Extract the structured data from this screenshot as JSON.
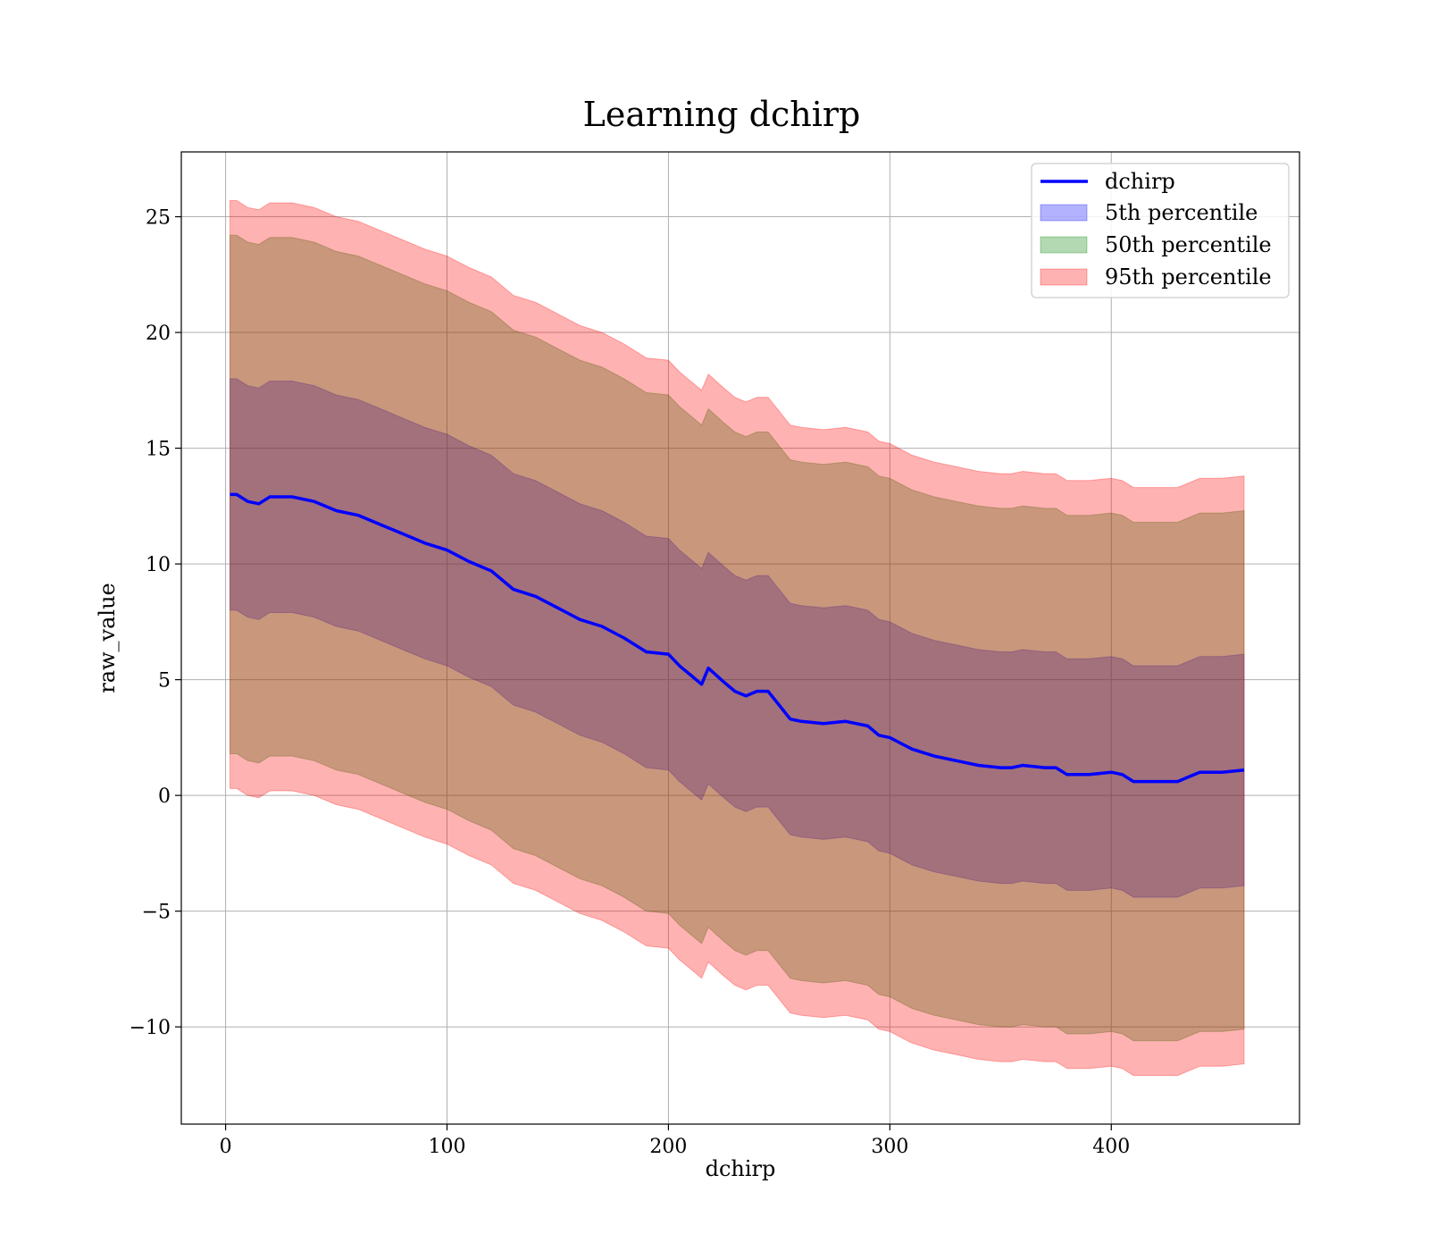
{
  "chart_data": {
    "type": "area",
    "title": "Learning dchirp",
    "xlabel": "dchirp",
    "ylabel": "raw_value",
    "xlim": [
      -20,
      485
    ],
    "ylim": [
      -14.2,
      27.8
    ],
    "xticks": [
      0,
      100,
      200,
      300,
      400
    ],
    "yticks": [
      -10,
      -5,
      0,
      5,
      10,
      15,
      20,
      25
    ],
    "ytick_labels": [
      "−10",
      "−5",
      "0",
      "5",
      "10",
      "15",
      "20",
      "25"
    ],
    "grid": true,
    "legend_position": "top-right",
    "x": [
      2,
      5,
      10,
      15,
      20,
      30,
      40,
      50,
      60,
      70,
      80,
      90,
      100,
      110,
      120,
      130,
      140,
      150,
      160,
      170,
      180,
      190,
      200,
      205,
      210,
      215,
      218,
      225,
      230,
      235,
      240,
      245,
      250,
      255,
      260,
      270,
      280,
      290,
      295,
      300,
      310,
      320,
      330,
      340,
      350,
      355,
      360,
      370,
      375,
      380,
      390,
      400,
      405,
      410,
      415,
      420,
      425,
      430,
      435,
      440,
      450,
      460
    ],
    "series": [
      {
        "name": "dchirp",
        "kind": "line",
        "color": "#0000ff",
        "values": [
          13.0,
          13.0,
          12.7,
          12.6,
          12.9,
          12.9,
          12.7,
          12.3,
          12.1,
          11.7,
          11.3,
          10.9,
          10.6,
          10.1,
          9.7,
          8.9,
          8.6,
          8.1,
          7.6,
          7.3,
          6.8,
          6.2,
          6.1,
          5.6,
          5.2,
          4.8,
          5.5,
          4.9,
          4.5,
          4.3,
          4.5,
          4.5,
          3.9,
          3.3,
          3.2,
          3.1,
          3.2,
          3.0,
          2.6,
          2.5,
          2.0,
          1.7,
          1.5,
          1.3,
          1.2,
          1.2,
          1.3,
          1.2,
          1.2,
          0.9,
          0.9,
          1.0,
          0.9,
          0.6,
          0.6,
          0.6,
          0.6,
          0.6,
          0.8,
          1.0,
          1.0,
          1.1
        ]
      },
      {
        "name": "5th percentile",
        "kind": "band",
        "color": "#0000ff",
        "lower": [
          8.0,
          8.0,
          7.7,
          7.6,
          7.9,
          7.9,
          7.7,
          7.3,
          7.1,
          6.7,
          6.3,
          5.9,
          5.6,
          5.1,
          4.7,
          3.9,
          3.6,
          3.1,
          2.6,
          2.3,
          1.8,
          1.2,
          1.1,
          0.6,
          0.2,
          -0.2,
          0.5,
          -0.1,
          -0.5,
          -0.7,
          -0.5,
          -0.5,
          -1.1,
          -1.7,
          -1.8,
          -1.9,
          -1.8,
          -2.0,
          -2.4,
          -2.5,
          -3.0,
          -3.3,
          -3.5,
          -3.7,
          -3.8,
          -3.8,
          -3.7,
          -3.8,
          -3.8,
          -4.1,
          -4.1,
          -4.0,
          -4.1,
          -4.4,
          -4.4,
          -4.4,
          -4.4,
          -4.4,
          -4.2,
          -4.0,
          -4.0,
          -3.9
        ],
        "upper": [
          18.0,
          18.0,
          17.7,
          17.6,
          17.9,
          17.9,
          17.7,
          17.3,
          17.1,
          16.7,
          16.3,
          15.9,
          15.6,
          15.1,
          14.7,
          13.9,
          13.6,
          13.1,
          12.6,
          12.3,
          11.8,
          11.2,
          11.1,
          10.6,
          10.2,
          9.8,
          10.5,
          9.9,
          9.5,
          9.3,
          9.5,
          9.5,
          8.9,
          8.3,
          8.2,
          8.1,
          8.2,
          8.0,
          7.6,
          7.5,
          7.0,
          6.7,
          6.5,
          6.3,
          6.2,
          6.2,
          6.3,
          6.2,
          6.2,
          5.9,
          5.9,
          6.0,
          5.9,
          5.6,
          5.6,
          5.6,
          5.6,
          5.6,
          5.8,
          6.0,
          6.0,
          6.1
        ]
      },
      {
        "name": "50th percentile",
        "kind": "band",
        "color": "#008000",
        "lower": [
          1.8,
          1.8,
          1.5,
          1.4,
          1.7,
          1.7,
          1.5,
          1.1,
          0.9,
          0.5,
          0.1,
          -0.3,
          -0.6,
          -1.1,
          -1.5,
          -2.3,
          -2.6,
          -3.1,
          -3.6,
          -3.9,
          -4.4,
          -5.0,
          -5.1,
          -5.6,
          -6.0,
          -6.4,
          -5.7,
          -6.3,
          -6.7,
          -6.9,
          -6.7,
          -6.7,
          -7.3,
          -7.9,
          -8.0,
          -8.1,
          -8.0,
          -8.2,
          -8.6,
          -8.7,
          -9.2,
          -9.5,
          -9.7,
          -9.9,
          -10.0,
          -10.0,
          -9.9,
          -10.0,
          -10.0,
          -10.3,
          -10.3,
          -10.2,
          -10.3,
          -10.6,
          -10.6,
          -10.6,
          -10.6,
          -10.6,
          -10.4,
          -10.2,
          -10.2,
          -10.1
        ],
        "upper": [
          24.2,
          24.2,
          23.9,
          23.8,
          24.1,
          24.1,
          23.9,
          23.5,
          23.3,
          22.9,
          22.5,
          22.1,
          21.8,
          21.3,
          20.9,
          20.1,
          19.8,
          19.3,
          18.8,
          18.5,
          18.0,
          17.4,
          17.3,
          16.8,
          16.4,
          16.0,
          16.7,
          16.1,
          15.7,
          15.5,
          15.7,
          15.7,
          15.1,
          14.5,
          14.4,
          14.3,
          14.4,
          14.2,
          13.8,
          13.7,
          13.2,
          12.9,
          12.7,
          12.5,
          12.4,
          12.4,
          12.5,
          12.4,
          12.4,
          12.1,
          12.1,
          12.2,
          12.1,
          11.8,
          11.8,
          11.8,
          11.8,
          11.8,
          12.0,
          12.2,
          12.2,
          12.3
        ]
      },
      {
        "name": "95th percentile",
        "kind": "band",
        "color": "#ff0000",
        "lower": [
          0.3,
          0.3,
          0.0,
          -0.1,
          0.2,
          0.2,
          0.0,
          -0.4,
          -0.6,
          -1.0,
          -1.4,
          -1.8,
          -2.1,
          -2.6,
          -3.0,
          -3.8,
          -4.1,
          -4.6,
          -5.1,
          -5.4,
          -5.9,
          -6.5,
          -6.6,
          -7.1,
          -7.5,
          -7.9,
          -7.2,
          -7.8,
          -8.2,
          -8.4,
          -8.2,
          -8.2,
          -8.8,
          -9.4,
          -9.5,
          -9.6,
          -9.5,
          -9.7,
          -10.1,
          -10.2,
          -10.7,
          -11.0,
          -11.2,
          -11.4,
          -11.5,
          -11.5,
          -11.4,
          -11.5,
          -11.5,
          -11.8,
          -11.8,
          -11.7,
          -11.8,
          -12.1,
          -12.1,
          -12.1,
          -12.1,
          -12.1,
          -11.9,
          -11.7,
          -11.7,
          -11.6
        ],
        "upper": [
          25.7,
          25.7,
          25.4,
          25.3,
          25.6,
          25.6,
          25.4,
          25.0,
          24.8,
          24.4,
          24.0,
          23.6,
          23.3,
          22.8,
          22.4,
          21.6,
          21.3,
          20.8,
          20.3,
          20.0,
          19.5,
          18.9,
          18.8,
          18.3,
          17.9,
          17.5,
          18.2,
          17.6,
          17.2,
          17.0,
          17.2,
          17.2,
          16.6,
          16.0,
          15.9,
          15.8,
          15.9,
          15.7,
          15.3,
          15.2,
          14.7,
          14.4,
          14.2,
          14.0,
          13.9,
          13.9,
          14.0,
          13.9,
          13.9,
          13.6,
          13.6,
          13.7,
          13.6,
          13.3,
          13.3,
          13.3,
          13.3,
          13.3,
          13.5,
          13.7,
          13.7,
          13.8
        ]
      }
    ]
  }
}
